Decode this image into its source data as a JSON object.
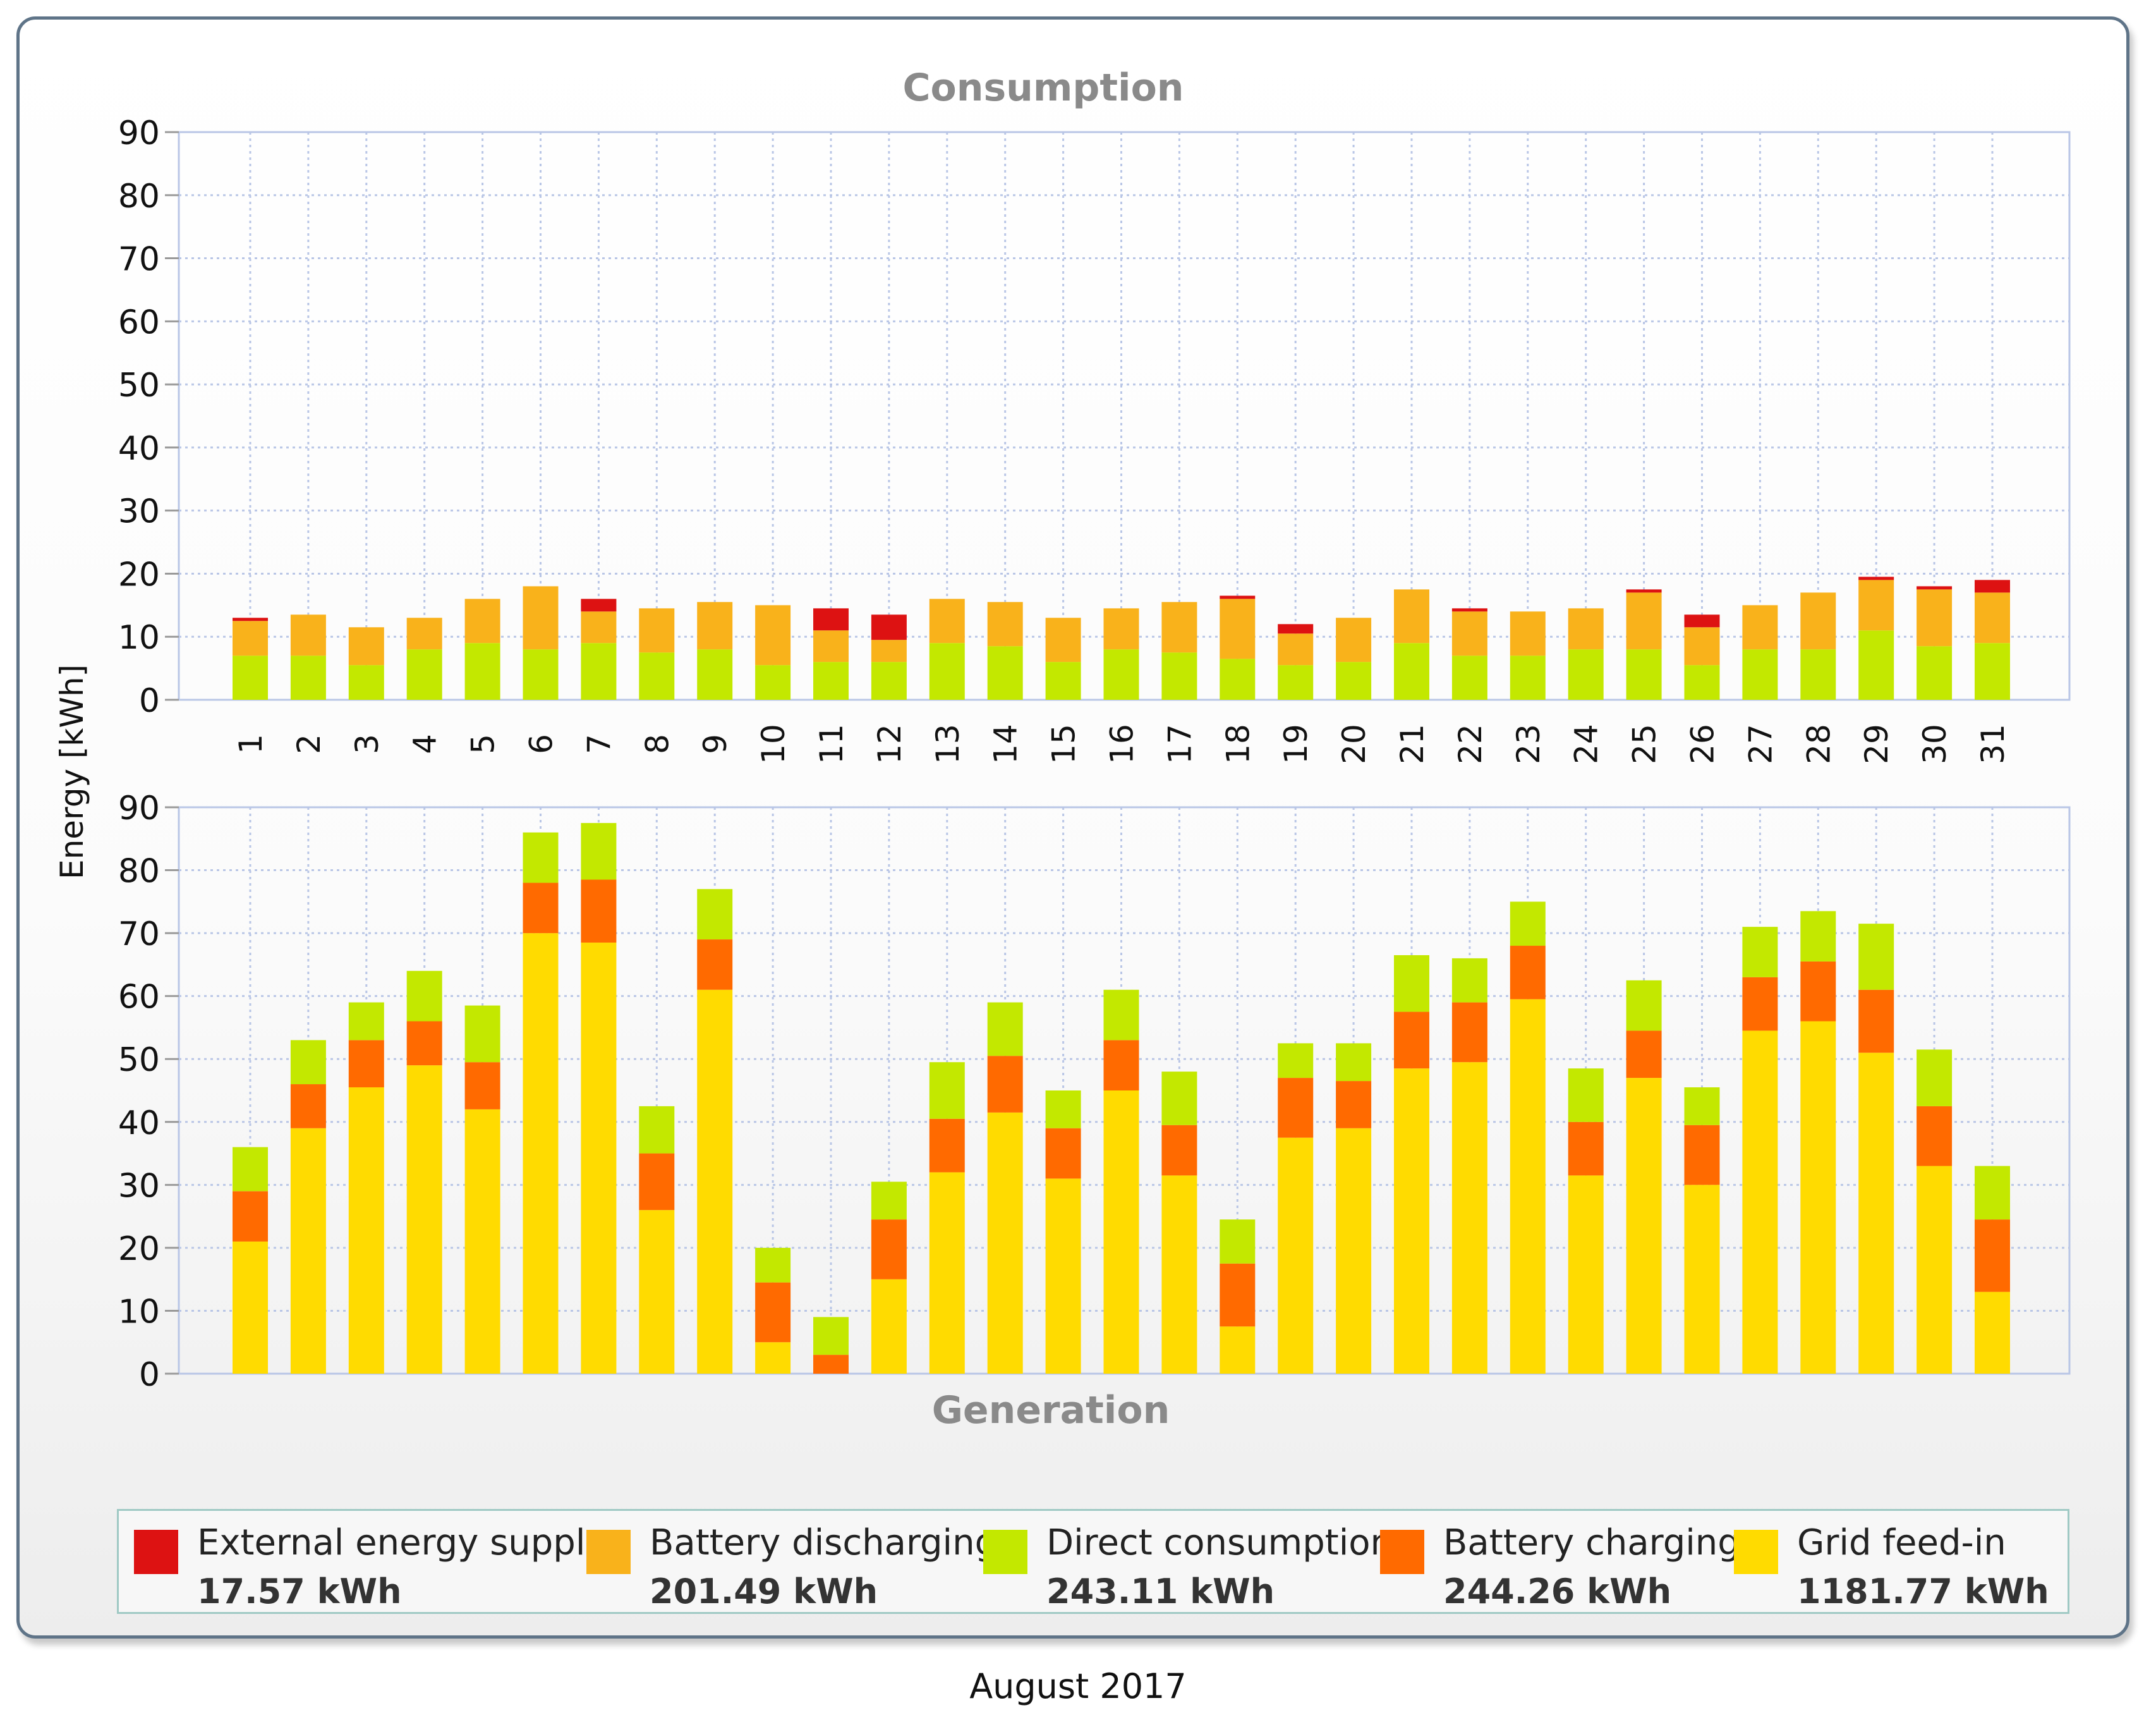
{
  "month": "August 2017",
  "colors": {
    "external": "#dd1212",
    "battery_discharging": "#f9b21b",
    "direct_consumption": "#c3e800",
    "battery_charging": "#ff6a00",
    "grid_feed_in": "#ffdb00",
    "grid_line": "#b9c6e6",
    "axis_text": "#111111",
    "title_text": "#8a8a8a"
  },
  "legend": [
    {
      "name": "External energy supply",
      "total": "17.57 kWh",
      "color": "#dd1212",
      "icon": "square-swatch"
    },
    {
      "name": "Battery discharging",
      "total": "201.49 kWh",
      "color": "#f9b21b",
      "icon": "square-swatch"
    },
    {
      "name": "Direct consumption",
      "total": "243.11 kWh",
      "color": "#c3e800",
      "icon": "square-swatch"
    },
    {
      "name": "Battery charging",
      "total": "244.26 kWh",
      "color": "#ff6a00",
      "icon": "square-swatch"
    },
    {
      "name": "Grid feed-in",
      "total": "1181.77 kWh",
      "color": "#ffdb00",
      "icon": "square-swatch"
    }
  ],
  "chart_data": [
    {
      "type": "bar",
      "stacked": true,
      "title": "Consumption",
      "ylabel": "Energy [kWh]",
      "xlabel": "",
      "ylim": [
        0,
        90
      ],
      "yticks": [
        0,
        10,
        20,
        30,
        40,
        50,
        60,
        70,
        80,
        90
      ],
      "grid": true,
      "categories": [
        "1",
        "2",
        "3",
        "4",
        "5",
        "6",
        "7",
        "8",
        "9",
        "10",
        "11",
        "12",
        "13",
        "14",
        "15",
        "16",
        "17",
        "18",
        "19",
        "20",
        "21",
        "22",
        "23",
        "24",
        "25",
        "26",
        "27",
        "28",
        "29",
        "30",
        "31"
      ],
      "series": [
        {
          "name": "Direct consumption",
          "color": "#c3e800",
          "values": [
            7,
            7,
            5.5,
            8,
            9,
            8,
            9,
            7.5,
            8,
            5.5,
            6,
            6,
            9,
            8.5,
            6,
            8,
            7.5,
            6.5,
            5.5,
            6,
            9,
            7,
            7,
            8,
            8,
            5.5,
            8,
            8,
            11,
            8.5,
            9
          ]
        },
        {
          "name": "Battery discharging",
          "color": "#f9b21b",
          "values": [
            5.5,
            6.5,
            6,
            5,
            7,
            10,
            5,
            7,
            7.5,
            9.5,
            5,
            3.5,
            7,
            7,
            7,
            6.5,
            8,
            9.5,
            5,
            7,
            8.5,
            7,
            7,
            6.5,
            9,
            6,
            7,
            9,
            8,
            9,
            8
          ]
        },
        {
          "name": "External energy supply",
          "color": "#dd1212",
          "values": [
            0.5,
            0,
            0,
            0,
            0,
            0,
            2,
            0,
            0,
            0,
            3.5,
            4,
            0,
            0,
            0,
            0,
            0,
            0.5,
            1.5,
            0,
            0,
            0.5,
            0,
            0,
            0.5,
            2,
            0,
            0,
            0.5,
            0.5,
            2
          ]
        }
      ]
    },
    {
      "type": "bar",
      "stacked": true,
      "title": "Generation",
      "ylabel": "Energy [kWh]",
      "xlabel": "",
      "ylim": [
        0,
        90
      ],
      "yticks": [
        0,
        10,
        20,
        30,
        40,
        50,
        60,
        70,
        80,
        90
      ],
      "grid": true,
      "categories": [
        "1",
        "2",
        "3",
        "4",
        "5",
        "6",
        "7",
        "8",
        "9",
        "10",
        "11",
        "12",
        "13",
        "14",
        "15",
        "16",
        "17",
        "18",
        "19",
        "20",
        "21",
        "22",
        "23",
        "24",
        "25",
        "26",
        "27",
        "28",
        "29",
        "30",
        "31"
      ],
      "series": [
        {
          "name": "Grid feed-in",
          "color": "#ffdb00",
          "values": [
            21,
            39,
            45.5,
            49,
            42,
            70,
            68.5,
            26,
            61,
            5,
            0,
            15,
            32,
            41.5,
            31,
            45,
            31.5,
            7.5,
            37.5,
            39,
            48.5,
            49.5,
            59.5,
            31.5,
            47,
            30,
            54.5,
            56,
            51,
            33,
            13
          ]
        },
        {
          "name": "Battery charging",
          "color": "#ff6a00",
          "values": [
            8,
            7,
            7.5,
            7,
            7.5,
            8,
            10,
            9,
            8,
            9.5,
            3,
            9.5,
            8.5,
            9,
            8,
            8,
            8,
            10,
            9.5,
            7.5,
            9,
            9.5,
            8.5,
            8.5,
            7.5,
            9.5,
            8.5,
            9.5,
            10,
            9.5,
            11.5
          ]
        },
        {
          "name": "Direct consumption",
          "color": "#c3e800",
          "values": [
            7,
            7,
            6,
            8,
            9,
            8,
            9,
            7.5,
            8,
            5.5,
            6,
            6,
            9,
            8.5,
            6,
            8,
            8.5,
            7,
            5.5,
            6,
            9,
            7,
            7,
            8.5,
            8,
            6,
            8,
            8,
            10.5,
            9,
            8.5
          ]
        }
      ]
    }
  ]
}
